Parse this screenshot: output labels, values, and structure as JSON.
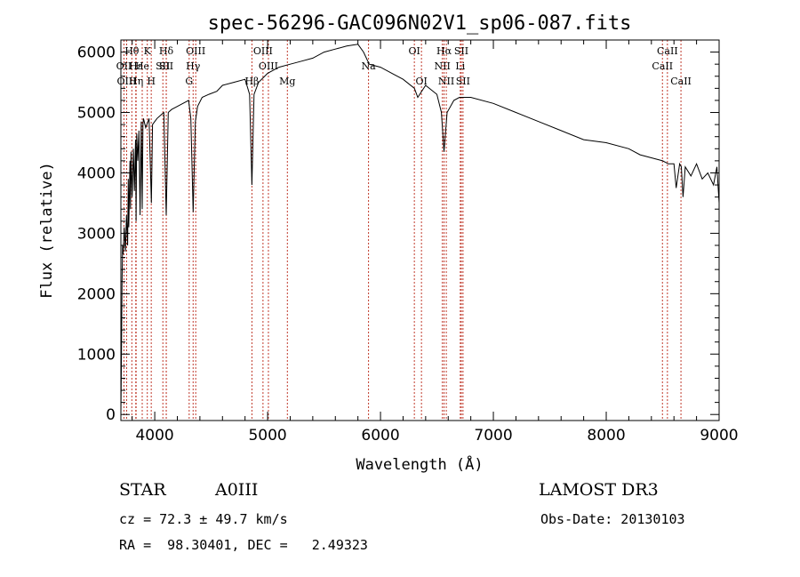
{
  "chart_data": {
    "type": "line",
    "title": "spec-56296-GAC096N02V1_sp06-087.fits",
    "xlabel": "Wavelength (Å)",
    "ylabel": "Flux (relative)",
    "xlim": [
      3700,
      9000
    ],
    "ylim": [
      -100,
      6200
    ],
    "xticks": [
      4000,
      5000,
      6000,
      7000,
      8000,
      9000
    ],
    "yticks": [
      0,
      1000,
      2000,
      3000,
      4000,
      5000,
      6000
    ],
    "grid": false,
    "series": [
      {
        "name": "spectrum",
        "x": [
          3700,
          3705,
          3710,
          3715,
          3720,
          3730,
          3740,
          3750,
          3760,
          3765,
          3770,
          3780,
          3785,
          3790,
          3800,
          3810,
          3820,
          3830,
          3835,
          3840,
          3850,
          3860,
          3870,
          3880,
          3889,
          3895,
          3900,
          3920,
          3950,
          3970,
          3980,
          4000,
          4020,
          4050,
          4080,
          4102,
          4120,
          4150,
          4200,
          4250,
          4300,
          4320,
          4340,
          4360,
          4380,
          4420,
          4480,
          4550,
          4600,
          4700,
          4800,
          4840,
          4861,
          4880,
          4920,
          5000,
          5100,
          5200,
          5300,
          5400,
          5500,
          5600,
          5700,
          5800,
          5850,
          5900,
          6000,
          6100,
          6200,
          6300,
          6330,
          6400,
          6500,
          6540,
          6563,
          6590,
          6650,
          6700,
          6800,
          7000,
          7200,
          7400,
          7600,
          7800,
          8000,
          8200,
          8300,
          8400,
          8500,
          8550,
          8600,
          8620,
          8650,
          8665,
          8680,
          8700,
          8750,
          8800,
          8850,
          8900,
          8950,
          8980,
          9000
        ],
        "y": [
          0,
          900,
          2200,
          2800,
          2650,
          3100,
          2700,
          3300,
          2800,
          3900,
          3100,
          4200,
          3400,
          4350,
          3600,
          4400,
          3700,
          4550,
          3200,
          4650,
          4200,
          4700,
          3300,
          4850,
          3400,
          4800,
          4900,
          4750,
          4900,
          3500,
          4800,
          4850,
          4900,
          4950,
          5000,
          3300,
          5000,
          5050,
          5100,
          5150,
          5200,
          4900,
          3350,
          4850,
          5100,
          5250,
          5300,
          5350,
          5450,
          5500,
          5550,
          5300,
          3800,
          5300,
          5500,
          5650,
          5750,
          5800,
          5850,
          5900,
          6000,
          6050,
          6100,
          6130,
          6000,
          5800,
          5750,
          5650,
          5550,
          5400,
          5250,
          5450,
          5300,
          5000,
          4350,
          5000,
          5200,
          5250,
          5250,
          5150,
          5000,
          4850,
          4700,
          4550,
          4500,
          4400,
          4300,
          4250,
          4200,
          4150,
          4150,
          3750,
          4150,
          4100,
          3600,
          4100,
          3950,
          4150,
          3900,
          4000,
          3800,
          4100,
          3500
        ]
      }
    ],
    "line_markers": [
      {
        "label": "Hθ",
        "x": 3797,
        "row": 0
      },
      {
        "label": "OII",
        "x": 3727,
        "row": 1
      },
      {
        "label": "OIII",
        "x": 3751,
        "row": 2
      },
      {
        "label": "Hε",
        "x": 3832,
        "row": 1
      },
      {
        "label": "Hη",
        "x": 3835,
        "row": 2
      },
      {
        "label": "K",
        "x": 3934,
        "row": 0
      },
      {
        "label": "He",
        "x": 3889,
        "row": 1
      },
      {
        "label": "H",
        "x": 3969,
        "row": 2
      },
      {
        "label": "SII",
        "x": 4072,
        "row": 1
      },
      {
        "label": "Hδ",
        "x": 4102,
        "row": 0
      },
      {
        "label": "SII",
        "x": 4102,
        "row": 1
      },
      {
        "label": "OIII",
        "x": 4363,
        "row": 0
      },
      {
        "label": "Hγ",
        "x": 4340,
        "row": 1
      },
      {
        "label": "G",
        "x": 4305,
        "row": 2
      },
      {
        "label": "Hβ",
        "x": 4861,
        "row": 2
      },
      {
        "label": "OIII",
        "x": 4959,
        "row": 0
      },
      {
        "label": "OIII",
        "x": 5007,
        "row": 1
      },
      {
        "label": "Mg",
        "x": 5175,
        "row": 2
      },
      {
        "label": "Na",
        "x": 5894,
        "row": 1
      },
      {
        "label": "OI",
        "x": 6300,
        "row": 0
      },
      {
        "label": "OI",
        "x": 6363,
        "row": 2
      },
      {
        "label": "Hα",
        "x": 6563,
        "row": 0
      },
      {
        "label": "SII",
        "x": 6716,
        "row": 0
      },
      {
        "label": "NII",
        "x": 6548,
        "row": 1
      },
      {
        "label": "Li",
        "x": 6707,
        "row": 1
      },
      {
        "label": "NII",
        "x": 6583,
        "row": 2
      },
      {
        "label": "SII",
        "x": 6731,
        "row": 2
      },
      {
        "label": "CaII",
        "x": 8542,
        "row": 0
      },
      {
        "label": "CaII",
        "x": 8498,
        "row": 1
      },
      {
        "label": "CaII",
        "x": 8662,
        "row": 2
      }
    ]
  },
  "info": {
    "class": "STAR",
    "subclass": "A0III",
    "survey": "LAMOST DR3",
    "cz": "cz = 72.3 ± 49.7 km/s",
    "obs_date": "Obs-Date: 20130103",
    "radec": "RA =  98.30401, DEC =   2.49323"
  }
}
